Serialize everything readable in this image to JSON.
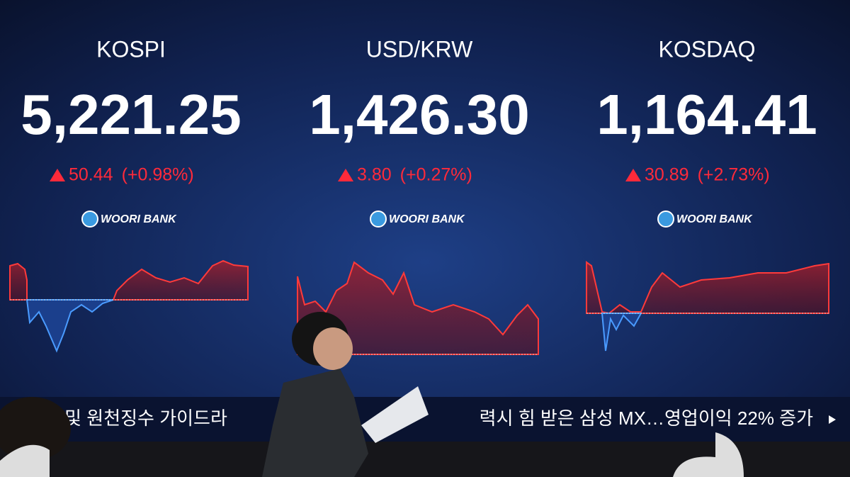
{
  "panels": [
    {
      "name": "KOSPI",
      "value": "5,221.25",
      "change": "50.44",
      "percent": "(+0.98%)",
      "bank": "WOORI BANK"
    },
    {
      "name": "USD/KRW",
      "value": "1,426.30",
      "change": "3.80",
      "percent": "(+0.27%)",
      "bank": "WOORI BANK"
    },
    {
      "name": "KOSDAQ",
      "value": "1,164.41",
      "change": "30.89",
      "percent": "(+2.73%)",
      "bank": "WOORI BANK"
    }
  ],
  "ticker": {
    "left": "제 및 원천징수 가이드라",
    "right": "력시 힘 받은 삼성 MX…영업이익 22% 증가"
  }
}
